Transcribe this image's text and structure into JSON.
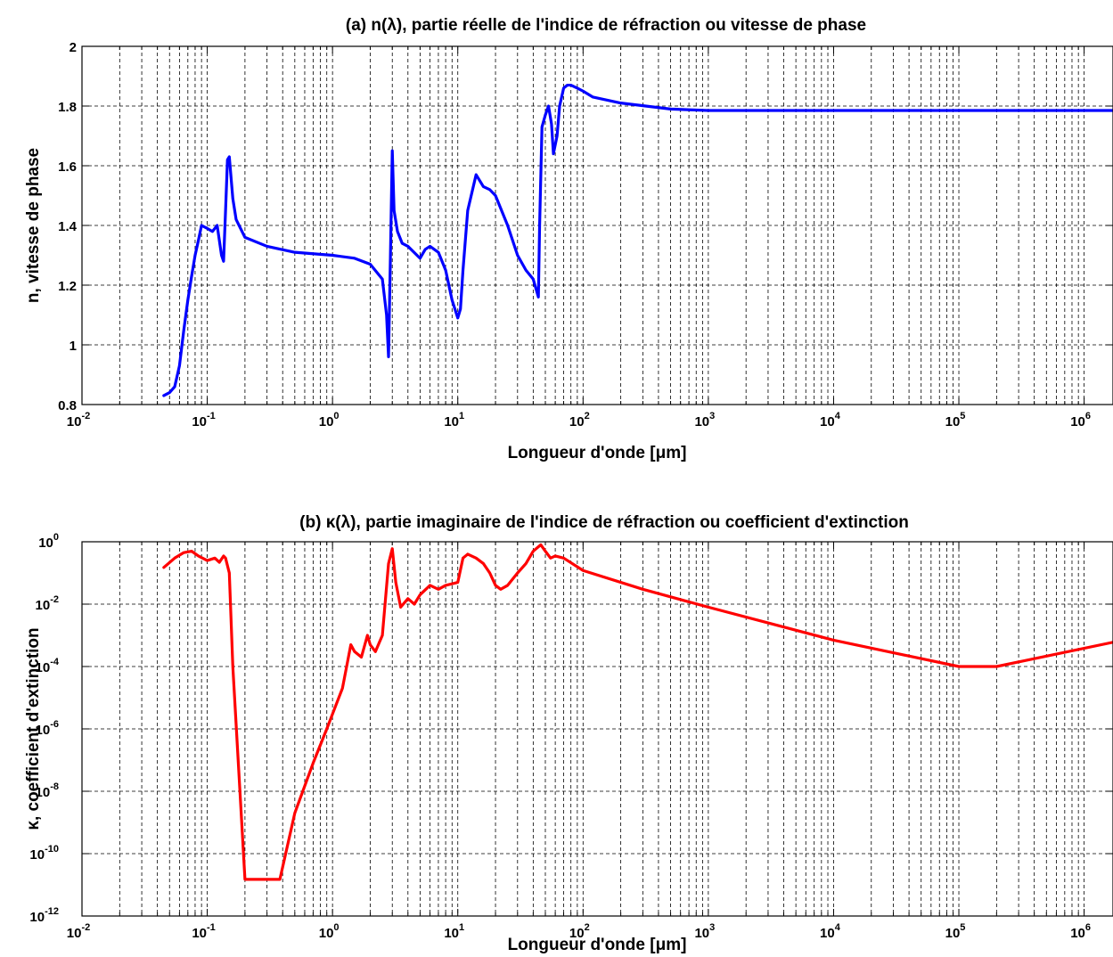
{
  "chart_data": [
    {
      "type": "line",
      "title": "(a) n(λ), partie réelle de l'indice de réfraction ou vitesse de phase",
      "xlabel": "Longueur d'onde [μm]",
      "ylabel": "n, vitesse de phase",
      "xscale": "log",
      "yscale": "linear",
      "xlim": [
        0.01,
        1700000
      ],
      "ylim": [
        0.8,
        2
      ],
      "grid": true,
      "line_color": "#0000ff",
      "x_ticks": [
        {
          "base": "10",
          "exp": "-2",
          "value": 0.01
        },
        {
          "base": "10",
          "exp": "-1",
          "value": 0.1
        },
        {
          "base": "10",
          "exp": "0",
          "value": 1
        },
        {
          "base": "10",
          "exp": "1",
          "value": 10
        },
        {
          "base": "10",
          "exp": "2",
          "value": 100
        },
        {
          "base": "10",
          "exp": "3",
          "value": 1000
        },
        {
          "base": "10",
          "exp": "4",
          "value": 10000
        },
        {
          "base": "10",
          "exp": "5",
          "value": 100000
        },
        {
          "base": "10",
          "exp": "6",
          "value": 1000000
        }
      ],
      "y_ticks": [
        {
          "label": "0.8",
          "value": 0.8
        },
        {
          "label": "1",
          "value": 1
        },
        {
          "label": "1.2",
          "value": 1.2
        },
        {
          "label": "1.4",
          "value": 1.4
        },
        {
          "label": "1.6",
          "value": 1.6
        },
        {
          "label": "1.8",
          "value": 1.8
        },
        {
          "label": "2",
          "value": 2
        }
      ],
      "x": [
        0.045,
        0.05,
        0.055,
        0.06,
        0.065,
        0.07,
        0.075,
        0.08,
        0.085,
        0.09,
        0.1,
        0.11,
        0.12,
        0.13,
        0.135,
        0.14,
        0.145,
        0.15,
        0.16,
        0.17,
        0.2,
        0.3,
        0.5,
        1.0,
        1.5,
        2.0,
        2.5,
        2.7,
        2.8,
        2.9,
        3.0,
        3.1,
        3.3,
        3.6,
        4.0,
        5.0,
        5.5,
        6.0,
        7.0,
        8.0,
        9.0,
        10.0,
        10.5,
        11.0,
        12.0,
        14.0,
        16.0,
        18.0,
        20.0,
        25.0,
        30.0,
        35.0,
        40.0,
        44.0,
        45.0,
        47.0,
        50.0,
        53.0,
        56.0,
        58.0,
        62.0,
        65.0,
        70.0,
        75.0,
        80.0,
        90.0,
        100.0,
        120.0,
        200.0,
        500.0,
        1000.0,
        10000.0,
        100000.0,
        1700000.0
      ],
      "y": [
        0.83,
        0.84,
        0.86,
        0.93,
        1.05,
        1.15,
        1.23,
        1.3,
        1.35,
        1.4,
        1.39,
        1.38,
        1.4,
        1.3,
        1.28,
        1.45,
        1.62,
        1.63,
        1.49,
        1.42,
        1.36,
        1.33,
        1.31,
        1.3,
        1.29,
        1.27,
        1.22,
        1.1,
        0.96,
        1.3,
        1.65,
        1.45,
        1.38,
        1.34,
        1.33,
        1.29,
        1.32,
        1.33,
        1.31,
        1.25,
        1.15,
        1.09,
        1.12,
        1.25,
        1.45,
        1.57,
        1.53,
        1.52,
        1.5,
        1.4,
        1.3,
        1.25,
        1.22,
        1.16,
        1.4,
        1.73,
        1.77,
        1.8,
        1.74,
        1.64,
        1.7,
        1.8,
        1.86,
        1.87,
        1.87,
        1.86,
        1.85,
        1.83,
        1.81,
        1.79,
        1.785,
        1.785,
        1.785,
        1.785
      ]
    },
    {
      "type": "line",
      "title": "(b) κ(λ), partie imaginaire de l'indice de réfraction ou coefficient d'extinction",
      "xlabel": "Longueur d'onde [μm]",
      "ylabel": "κ, coefficient d'extinction",
      "xscale": "log",
      "yscale": "log",
      "xlim": [
        0.01,
        1700000
      ],
      "ylim": [
        1e-12,
        1
      ],
      "grid": true,
      "line_color": "#ff0000",
      "x_ticks": [
        {
          "base": "10",
          "exp": "-2",
          "value": 0.01
        },
        {
          "base": "10",
          "exp": "-1",
          "value": 0.1
        },
        {
          "base": "10",
          "exp": "0",
          "value": 1
        },
        {
          "base": "10",
          "exp": "1",
          "value": 10
        },
        {
          "base": "10",
          "exp": "2",
          "value": 100
        },
        {
          "base": "10",
          "exp": "3",
          "value": 1000
        },
        {
          "base": "10",
          "exp": "4",
          "value": 10000
        },
        {
          "base": "10",
          "exp": "5",
          "value": 100000
        },
        {
          "base": "10",
          "exp": "6",
          "value": 1000000
        }
      ],
      "y_ticks": [
        {
          "base": "10",
          "exp": "-12",
          "value": 1e-12
        },
        {
          "base": "10",
          "exp": "-10",
          "value": 1e-10
        },
        {
          "base": "10",
          "exp": "-8",
          "value": 1e-08
        },
        {
          "base": "10",
          "exp": "-6",
          "value": 1e-06
        },
        {
          "base": "10",
          "exp": "-4",
          "value": 0.0001
        },
        {
          "base": "10",
          "exp": "-2",
          "value": 0.01
        },
        {
          "base": "10",
          "exp": "0",
          "value": 1
        }
      ],
      "x": [
        0.045,
        0.055,
        0.065,
        0.075,
        0.085,
        0.1,
        0.115,
        0.125,
        0.135,
        0.14,
        0.15,
        0.16,
        0.2,
        0.38,
        0.5,
        0.7,
        0.9,
        1.0,
        1.2,
        1.4,
        1.5,
        1.7,
        1.9,
        2.0,
        2.2,
        2.5,
        2.8,
        3.0,
        3.2,
        3.5,
        4.0,
        4.5,
        5.0,
        6.0,
        7.0,
        8.0,
        10.0,
        11.0,
        12.0,
        14.0,
        16.0,
        18.0,
        20.0,
        22.0,
        25.0,
        30.0,
        35.0,
        40.0,
        46.0,
        50.0,
        55.0,
        60.0,
        70.0,
        100.0,
        300.0,
        1000.0,
        10000.0,
        100000.0,
        200000.0,
        1700000.0
      ],
      "y": [
        0.15,
        0.3,
        0.45,
        0.5,
        0.35,
        0.25,
        0.3,
        0.22,
        0.35,
        0.3,
        0.1,
        0.0001,
        1.5e-11,
        1.5e-11,
        2e-09,
        8e-08,
        1e-06,
        3e-06,
        2e-05,
        0.0005,
        0.0003,
        0.0002,
        0.001,
        0.0005,
        0.0003,
        0.001,
        0.2,
        0.6,
        0.05,
        0.008,
        0.015,
        0.01,
        0.02,
        0.04,
        0.03,
        0.04,
        0.05,
        0.3,
        0.4,
        0.3,
        0.2,
        0.1,
        0.04,
        0.03,
        0.04,
        0.1,
        0.2,
        0.5,
        0.8,
        0.5,
        0.3,
        0.35,
        0.3,
        0.12,
        0.03,
        0.008,
        0.0007,
        0.0001,
        0.0001,
        0.0006
      ]
    }
  ]
}
